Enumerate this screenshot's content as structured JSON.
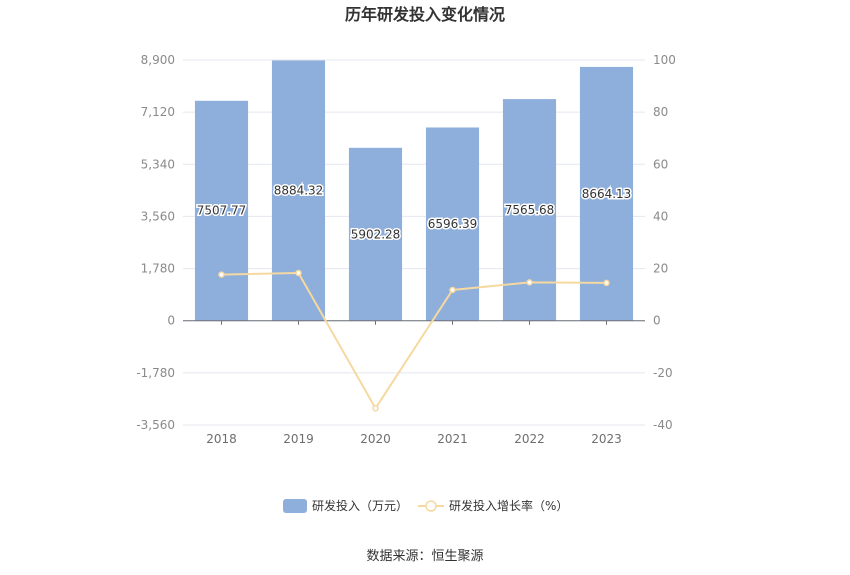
{
  "title": "历年研发投入变化情况",
  "source": "数据来源：恒生聚源",
  "chart_data": {
    "type": "bar",
    "categories": [
      "2018",
      "2019",
      "2020",
      "2021",
      "2022",
      "2023"
    ],
    "series": [
      {
        "name": "研发投入（万元）",
        "type": "bar",
        "axis": "left",
        "color": "#8eaedb",
        "values": [
          7507.77,
          8884.32,
          5902.28,
          6596.39,
          7565.68,
          8664.13
        ],
        "labels": [
          "7507.77",
          "8884.32",
          "5902.28",
          "6596.39",
          "7565.68",
          "8664.13"
        ]
      },
      {
        "name": "研发投入增长率（%）",
        "type": "line",
        "axis": "right",
        "color": "#f5d9a0",
        "values": [
          17.7,
          18.3,
          -33.6,
          11.8,
          14.7,
          14.5
        ]
      }
    ],
    "y_left": {
      "ylim": [
        -3560,
        8900
      ],
      "ticks": [
        -3560,
        -1780,
        0,
        1780,
        3560,
        5340,
        7120,
        8900
      ],
      "tick_labels": [
        "-3,560",
        "-1,780",
        "0",
        "1,780",
        "3,560",
        "5,340",
        "7,120",
        "8,900"
      ]
    },
    "y_right": {
      "ylim": [
        -40,
        100
      ],
      "ticks": [
        -40,
        -20,
        0,
        20,
        40,
        60,
        80,
        100
      ],
      "tick_labels": [
        "-40",
        "-20",
        "0",
        "20",
        "40",
        "60",
        "80",
        "100"
      ]
    },
    "grid": true,
    "legend_position": "bottom"
  }
}
